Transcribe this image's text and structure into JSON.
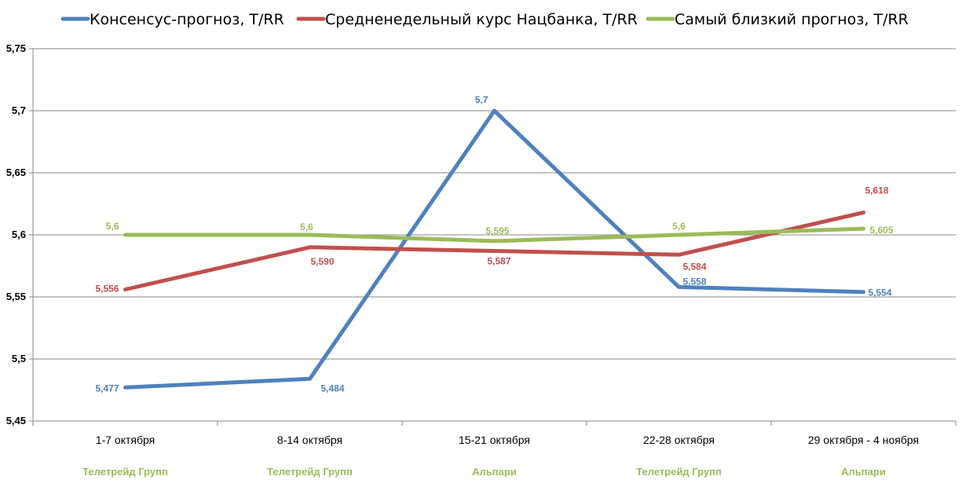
{
  "chart_data": {
    "type": "line",
    "categories": [
      "1-7 октября",
      "8-14 октября",
      "15-21 октября",
      "22-28 октября",
      "29 октября - 4 ноября"
    ],
    "category_sublabels": [
      "Телетрейд Групп",
      "Телетрейд Групп",
      "Альпари",
      "Телетрейд Групп",
      "Альпари"
    ],
    "sublabel_color": "#9bbb59",
    "y_ticks": [
      "5,45",
      "5,5",
      "5,55",
      "5,6",
      "5,65",
      "5,7",
      "5,75"
    ],
    "ylim": [
      5.45,
      5.75
    ],
    "grid": true,
    "legend_position": "top",
    "series": [
      {
        "name": "Консенсус-прогноз,  Т/RR",
        "color": "#4f81bd",
        "values": [
          5.477,
          5.484,
          5.7,
          5.558,
          5.554
        ],
        "labels": [
          "5,477",
          "5,484",
          "5,7",
          "5,558",
          "5,554"
        ]
      },
      {
        "name": "Средненедельный  курс Нацбанка, Т/RR",
        "color": "#c0504d",
        "values": [
          5.556,
          5.59,
          5.587,
          5.584,
          5.618
        ],
        "labels": [
          "5,556",
          "5,590",
          "5,587",
          "5,584",
          "5,618"
        ]
      },
      {
        "name": "Самый  близкий прогноз, Т/RR",
        "color": "#9bbb59",
        "values": [
          5.6,
          5.6,
          5.595,
          5.6,
          5.605
        ],
        "labels": [
          "5,6",
          "5,6",
          "5,595",
          "5,6",
          "5,605"
        ]
      }
    ]
  }
}
